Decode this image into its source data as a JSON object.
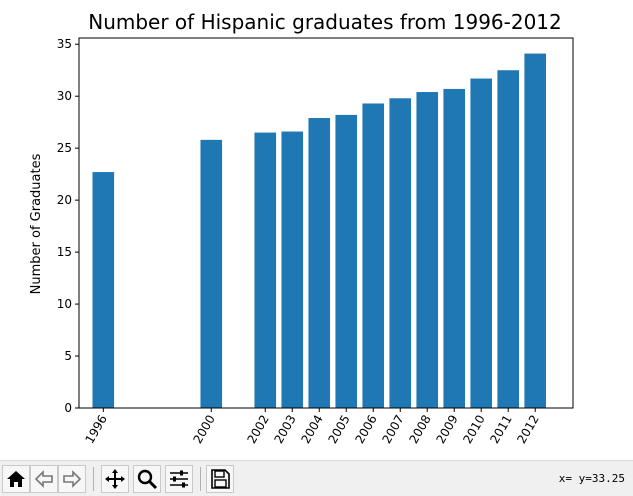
{
  "chart_data": {
    "type": "bar",
    "title": "Number of Hispanic graduates from 1996-2012",
    "xlabel": "",
    "ylabel": "Number of Graduates",
    "x": [
      1996,
      2000,
      2002,
      2003,
      2004,
      2005,
      2006,
      2007,
      2008,
      2009,
      2010,
      2011,
      2012
    ],
    "tick_labels": [
      "1996",
      "2000",
      "2002",
      "2003",
      "2004",
      "2005",
      "2006",
      "2007",
      "2008",
      "2009",
      "2010",
      "2011",
      "2012"
    ],
    "values": [
      22.7,
      25.8,
      26.5,
      26.6,
      27.9,
      28.2,
      29.3,
      29.8,
      30.4,
      30.7,
      31.7,
      32.5,
      34.1
    ],
    "ylim": [
      0,
      35.6
    ],
    "xlim": [
      1995.1,
      2013.4
    ],
    "y_ticks": [
      0,
      5,
      10,
      15,
      20,
      25,
      30,
      35
    ],
    "bar_color": "#1f77b4",
    "grid": false
  },
  "toolbar": {
    "items": [
      {
        "name": "home-icon",
        "glyph": "⌂"
      },
      {
        "name": "back-icon",
        "glyph": "⇦"
      },
      {
        "name": "forward-icon",
        "glyph": "⇨"
      },
      {
        "name": "pan-icon",
        "glyph": "✥"
      },
      {
        "name": "zoom-icon",
        "glyph": "🔍"
      },
      {
        "name": "configure-subplots-icon",
        "glyph": "☰"
      },
      {
        "name": "save-icon",
        "glyph": "💾"
      }
    ],
    "coords": "x= y=33.25"
  }
}
